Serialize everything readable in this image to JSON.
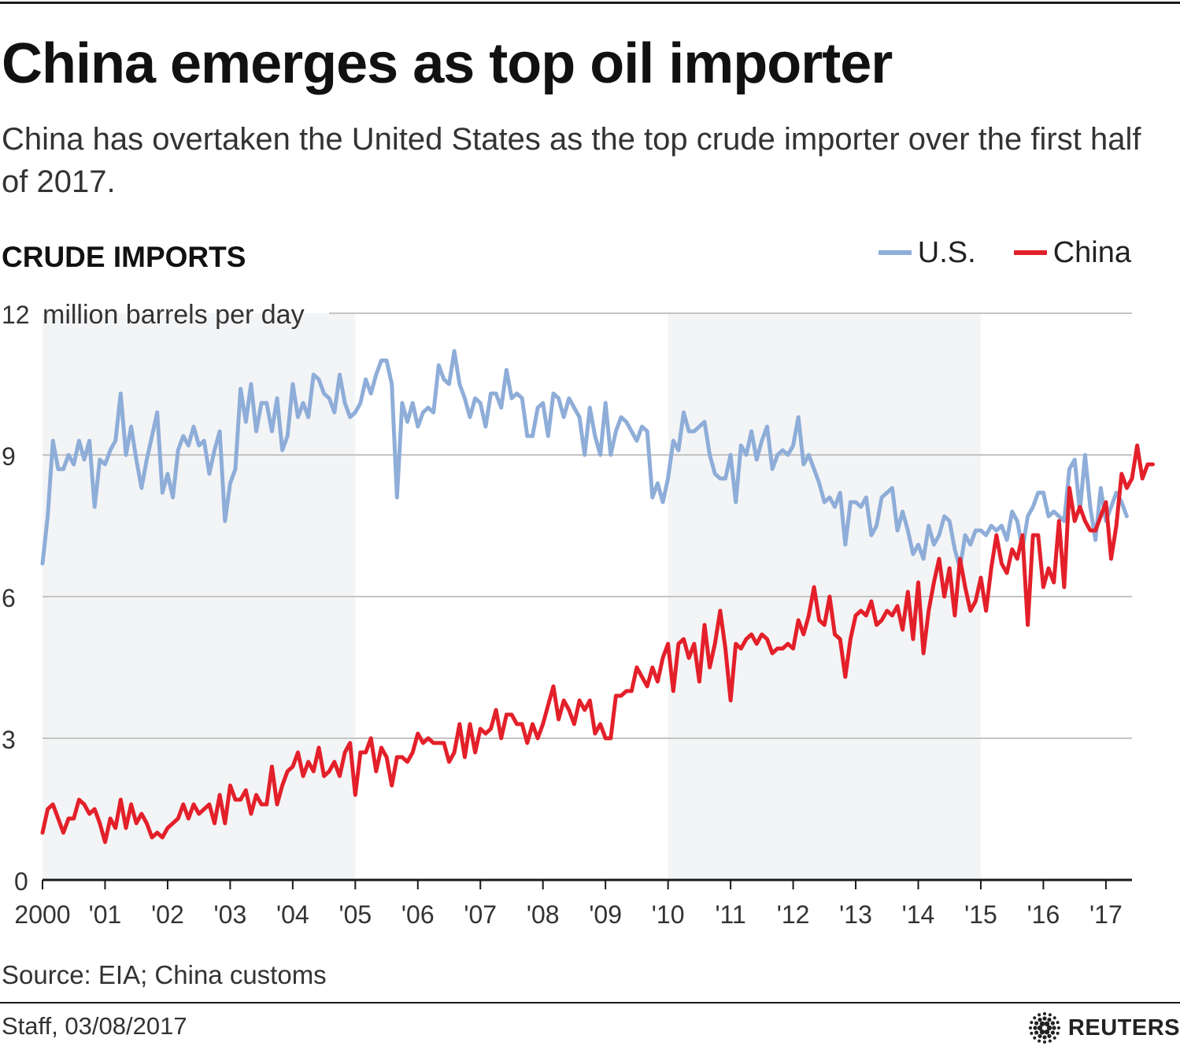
{
  "header": {
    "title": "China emerges as top oil importer",
    "subtitle": "China has overtaken the United States as the top crude importer over the first half of 2017."
  },
  "section_label": "CRUDE IMPORTS",
  "legend": {
    "us_label": "U.S.",
    "china_label": "China"
  },
  "colors": {
    "us": "#8eadd8",
    "china": "#e3202a",
    "band": "#f3f4f6",
    "grid": "#c4c4c4",
    "axis": "#1a1a1a"
  },
  "footer": {
    "source": "Source: EIA; China customs",
    "credit": "Staff,  03/08/2017",
    "brand": "REUTERS"
  },
  "chart_data": {
    "type": "line",
    "title": "CRUDE IMPORTS",
    "unit_label": "million barrels per day",
    "ylim": [
      0,
      12
    ],
    "yticks": [
      0,
      3,
      6,
      9,
      12
    ],
    "xlim": [
      "2000-01",
      "2017-06"
    ],
    "x_tick_labels": [
      "2000",
      "'01",
      "'02",
      "'03",
      "'04",
      "'05",
      "'06",
      "'07",
      "'08",
      "'09",
      "'10",
      "'11",
      "'12",
      "'13",
      "'14",
      "'15",
      "'16",
      "'17"
    ],
    "x_tick_years": [
      2000,
      2001,
      2002,
      2003,
      2004,
      2005,
      2006,
      2007,
      2008,
      2009,
      2010,
      2011,
      2012,
      2013,
      2014,
      2015,
      2016,
      2017
    ],
    "shaded_periods": [
      [
        "2000-01",
        "2005-01"
      ],
      [
        "2010-01",
        "2015-01"
      ]
    ],
    "grid": true,
    "legend_position": "top-right",
    "x_start": "2000-01",
    "x_step": "month",
    "series": [
      {
        "name": "U.S.",
        "color": "#8eadd8",
        "values": [
          6.7,
          7.7,
          9.3,
          8.7,
          8.7,
          9.0,
          8.8,
          9.3,
          8.9,
          9.3,
          7.9,
          8.9,
          8.8,
          9.1,
          9.3,
          10.3,
          9.0,
          9.6,
          8.9,
          8.3,
          8.9,
          9.4,
          9.9,
          8.2,
          8.6,
          8.1,
          9.1,
          9.4,
          9.2,
          9.6,
          9.2,
          9.3,
          8.6,
          9.1,
          9.5,
          7.6,
          8.4,
          8.7,
          10.4,
          9.7,
          10.5,
          9.5,
          10.1,
          10.1,
          9.5,
          10.2,
          9.1,
          9.4,
          10.5,
          9.8,
          10.1,
          9.8,
          10.7,
          10.6,
          10.3,
          10.2,
          9.9,
          10.7,
          10.1,
          9.8,
          9.9,
          10.1,
          10.6,
          10.3,
          10.7,
          11.0,
          11.0,
          10.5,
          8.1,
          10.1,
          9.7,
          10.1,
          9.6,
          9.9,
          10.0,
          9.9,
          10.9,
          10.6,
          10.5,
          11.2,
          10.5,
          10.2,
          9.8,
          10.2,
          10.1,
          9.6,
          10.3,
          10.3,
          10.0,
          10.8,
          10.2,
          10.3,
          10.2,
          9.4,
          9.4,
          10.0,
          10.1,
          9.4,
          10.3,
          10.2,
          9.8,
          10.2,
          10.0,
          9.8,
          9.0,
          10.0,
          9.4,
          9.0,
          10.1,
          9.0,
          9.5,
          9.8,
          9.7,
          9.5,
          9.3,
          9.6,
          9.5,
          8.1,
          8.4,
          8.0,
          8.5,
          9.3,
          9.1,
          9.9,
          9.5,
          9.5,
          9.6,
          9.7,
          9.0,
          8.6,
          8.5,
          8.5,
          9.0,
          8.0,
          9.2,
          9.0,
          9.5,
          8.9,
          9.3,
          9.6,
          8.7,
          9.0,
          9.1,
          9.0,
          9.2,
          9.8,
          8.8,
          9.0,
          8.7,
          8.4,
          8.0,
          8.1,
          7.9,
          8.2,
          7.1,
          8.0,
          8.0,
          7.9,
          8.1,
          7.3,
          7.5,
          8.1,
          8.2,
          8.3,
          7.4,
          7.8,
          7.4,
          6.9,
          7.1,
          6.8,
          7.5,
          7.1,
          7.3,
          7.7,
          7.6,
          7.0,
          6.6,
          7.3,
          7.1,
          7.4,
          7.4,
          7.3,
          7.5,
          7.4,
          7.5,
          7.2,
          7.8,
          7.6,
          7.0,
          7.7,
          7.9,
          8.2,
          8.2,
          7.7,
          7.8,
          7.7,
          7.6,
          8.7,
          8.9,
          7.8,
          9.0,
          7.9,
          7.2,
          8.3,
          7.6,
          7.9,
          8.2,
          8.0,
          7.7
        ]
      },
      {
        "name": "China",
        "color": "#e3202a",
        "values": [
          1.0,
          1.5,
          1.6,
          1.3,
          1.0,
          1.3,
          1.3,
          1.7,
          1.6,
          1.4,
          1.5,
          1.2,
          0.8,
          1.3,
          1.1,
          1.7,
          1.1,
          1.6,
          1.2,
          1.4,
          1.2,
          0.9,
          1.0,
          0.9,
          1.1,
          1.2,
          1.3,
          1.6,
          1.3,
          1.6,
          1.4,
          1.5,
          1.6,
          1.2,
          1.8,
          1.2,
          2.0,
          1.7,
          1.7,
          1.9,
          1.4,
          1.8,
          1.6,
          1.6,
          2.4,
          1.6,
          2.0,
          2.3,
          2.4,
          2.7,
          2.2,
          2.5,
          2.3,
          2.8,
          2.2,
          2.3,
          2.5,
          2.2,
          2.7,
          2.9,
          1.8,
          2.7,
          2.7,
          3.0,
          2.3,
          2.8,
          2.6,
          2.0,
          2.6,
          2.6,
          2.5,
          2.7,
          3.1,
          2.9,
          3.0,
          2.9,
          2.9,
          2.9,
          2.5,
          2.7,
          3.3,
          2.6,
          3.3,
          2.7,
          3.2,
          3.1,
          3.2,
          3.6,
          3.0,
          3.5,
          3.5,
          3.3,
          3.3,
          2.9,
          3.3,
          3.0,
          3.3,
          3.7,
          4.1,
          3.4,
          3.8,
          3.6,
          3.3,
          3.8,
          3.6,
          3.8,
          3.1,
          3.3,
          3.0,
          3.0,
          3.9,
          3.9,
          4.0,
          4.0,
          4.5,
          4.3,
          4.1,
          4.5,
          4.2,
          4.7,
          5.0,
          4.0,
          5.0,
          5.1,
          4.7,
          5.0,
          4.2,
          5.4,
          4.5,
          5.0,
          5.7,
          4.9,
          3.8,
          5.0,
          4.9,
          5.1,
          5.2,
          5.0,
          5.2,
          5.1,
          4.8,
          4.9,
          4.9,
          5.0,
          4.9,
          5.5,
          5.2,
          5.6,
          6.2,
          5.5,
          5.4,
          6.0,
          5.2,
          5.1,
          4.3,
          5.1,
          5.6,
          5.7,
          5.6,
          5.9,
          5.4,
          5.5,
          5.7,
          5.6,
          5.8,
          5.3,
          6.1,
          5.1,
          6.3,
          4.8,
          5.7,
          6.3,
          6.8,
          6.0,
          6.6,
          5.6,
          6.8,
          6.2,
          5.7,
          5.9,
          6.4,
          5.7,
          6.6,
          7.3,
          6.7,
          6.5,
          7.0,
          6.8,
          7.3,
          5.4,
          7.3,
          7.3,
          6.2,
          6.6,
          6.3,
          7.6,
          6.2,
          8.3,
          7.6,
          7.9,
          7.6,
          7.4,
          7.4,
          7.7,
          8.0,
          6.8,
          7.5,
          8.6,
          8.3,
          8.5,
          9.2,
          8.5,
          8.8,
          8.8
        ]
      }
    ]
  }
}
